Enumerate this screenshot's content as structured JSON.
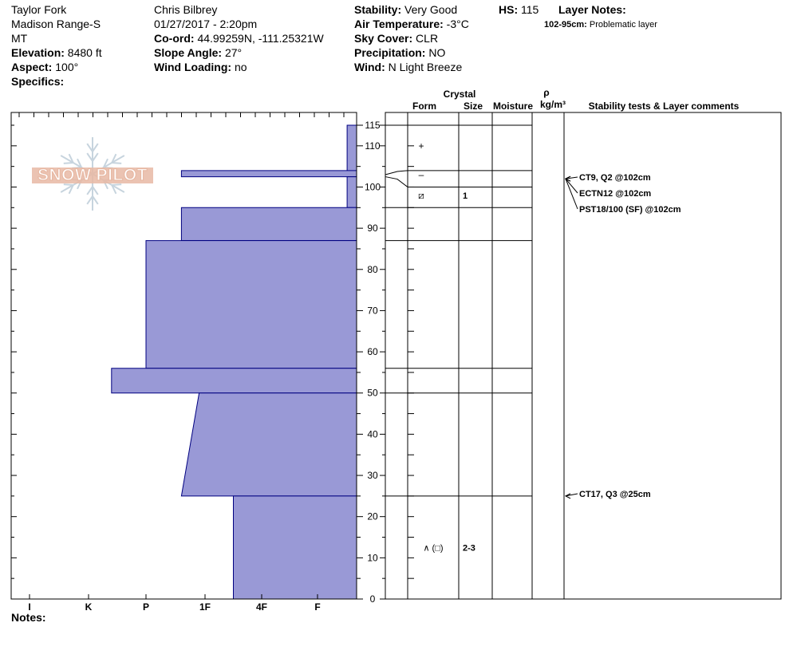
{
  "header": {
    "col1": [
      {
        "label": "",
        "value": "Taylor Fork"
      },
      {
        "label": "",
        "value": "Madison Range-S"
      },
      {
        "label": "",
        "value": "MT"
      },
      {
        "label": "Elevation:",
        "value": "8480 ft"
      },
      {
        "label": "Aspect:",
        "value": "100°"
      },
      {
        "label": "Specifics:",
        "value": ""
      }
    ],
    "col2": [
      {
        "label": "",
        "value": "Chris Bilbrey"
      },
      {
        "label": "",
        "value": "01/27/2017 - 2:20pm"
      },
      {
        "label": "Co-ord:",
        "value": "44.99259N, -111.25321W"
      },
      {
        "label": "Slope Angle:",
        "value": "27°"
      },
      {
        "label": "Wind Loading:",
        "value": "no"
      }
    ],
    "col3": [
      {
        "label": "Stability:",
        "value": "Very Good"
      },
      {
        "label": "Air Temperature:",
        "value": "-3°C"
      },
      {
        "label": "Sky Cover:",
        "value": "CLR"
      },
      {
        "label": "Precipitation:",
        "value": "NO"
      },
      {
        "label": "Wind:",
        "value": "N Light Breeze"
      }
    ],
    "hs_label": "HS:",
    "hs_value": "115",
    "layer_notes_label": "Layer Notes:",
    "layer_notes_range": "102-95cm:",
    "layer_notes_text": "Problematic layer",
    "notes_label": "Notes:"
  },
  "logo_text": "SNOW PILOT",
  "colors": {
    "bar_fill": "#9999d6",
    "bar_stroke": "#000080",
    "logo": "#e8b9a4",
    "snowflake": "#c7d4de"
  },
  "chart_data": {
    "type": "area",
    "title": "",
    "xlabel": "",
    "ylabel": "",
    "hardness_ticks": [
      "I",
      "K",
      "P",
      "1F",
      "4F",
      "F"
    ],
    "ylim": [
      0,
      115
    ],
    "height_ticks": [
      "115",
      "110",
      "100",
      "90",
      "80",
      "70",
      "60",
      "50",
      "40",
      "30",
      "20",
      "10",
      "0"
    ],
    "hardness_profile": [
      {
        "top": 115,
        "bottom": 102.5,
        "hardness": 0.1
      },
      {
        "top": 104,
        "bottom": 102.5,
        "hardness": 2.4
      },
      {
        "top": 102.5,
        "bottom": 95,
        "hardness": 0.1
      },
      {
        "top": 95,
        "bottom": 87,
        "hardness": 2.4
      },
      {
        "top": 87,
        "bottom": 56,
        "hardness": 3.0
      },
      {
        "top": 56,
        "bottom": 50,
        "hardness": 3.6
      },
      {
        "top": 50,
        "bottom": 25,
        "hardness_top": 2.1,
        "hardness_bottom": 2.4
      },
      {
        "top": 25,
        "bottom": 0,
        "hardness": 1.5
      }
    ],
    "columns": {
      "crystal_label": "Crystal",
      "form_label": "Form",
      "size_label": "Size",
      "moisture_label": "Moisture",
      "density_symbol": "ρ",
      "density_unit": "kg/m³",
      "comments_label": "Stability tests & Layer comments"
    },
    "layer_boundaries": [
      115,
      104,
      100,
      95,
      87,
      56,
      50,
      25
    ],
    "grain_rows": [
      {
        "height": 110,
        "form": "+",
        "size": ""
      },
      {
        "height": 103,
        "form": "–",
        "size": ""
      },
      {
        "height": 98,
        "form": "⧄",
        "size": "1"
      },
      {
        "height": 12.5,
        "form": "∧ (□)",
        "size": "2-3"
      }
    ],
    "stability_tests": [
      {
        "text": "CT9, Q2 @102cm",
        "at": 102
      },
      {
        "text": "ECTN12 @102cm",
        "at": 102
      },
      {
        "text": "PST18/100 (SF) @102cm",
        "at": 102
      },
      {
        "text": "CT17, Q3 @25cm",
        "at": 25
      }
    ]
  }
}
